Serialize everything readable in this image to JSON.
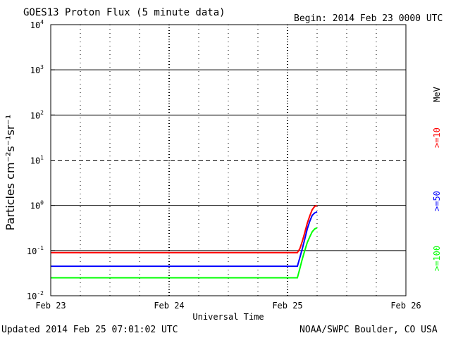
{
  "header": {
    "title": "GOES13 Proton Flux (5 minute data)",
    "begin": "Begin: 2014 Feb 23 0000 UTC"
  },
  "footer": {
    "updated": "Updated 2014 Feb 25 07:01:02 UTC",
    "credit": "NOAA/SWPC Boulder, CO USA"
  },
  "chart_data": {
    "type": "line",
    "title": "GOES13 Proton Flux (5 minute data)",
    "xlabel": "Universal Time",
    "ylabel": "Particles cm⁻²s⁻¹sr⁻¹",
    "yscale": "log",
    "ylim": [
      0.01,
      10000
    ],
    "xlim": [
      0,
      72
    ],
    "x_unit": "hours since 2014 Feb 23 00:00 UTC",
    "x_ticks": [
      {
        "x": 0,
        "label": "Feb 23"
      },
      {
        "x": 24,
        "label": "Feb 24"
      },
      {
        "x": 48,
        "label": "Feb 25"
      },
      {
        "x": 72,
        "label": "Feb 26"
      }
    ],
    "y_ticks": [
      {
        "value": 0.01,
        "base": "10",
        "exp": "-2"
      },
      {
        "value": 0.1,
        "base": "10",
        "exp": "-1"
      },
      {
        "value": 1,
        "base": "10",
        "exp": "0"
      },
      {
        "value": 10,
        "base": "10",
        "exp": "1"
      },
      {
        "value": 100,
        "base": "10",
        "exp": "2"
      },
      {
        "value": 1000,
        "base": "10",
        "exp": "3"
      },
      {
        "value": 10000,
        "base": "10",
        "exp": "4"
      }
    ],
    "reference_lines": [
      {
        "value": 0.1,
        "style": "solid"
      },
      {
        "value": 1,
        "style": "solid"
      },
      {
        "value": 10,
        "style": "dashed"
      },
      {
        "value": 100,
        "style": "solid"
      },
      {
        "value": 1000,
        "style": "solid"
      }
    ],
    "grid": "dotted verticals at 6 h intervals",
    "series": [
      {
        "name": ">=10 MeV",
        "color": "#ff0000",
        "x": [
          0,
          3,
          6,
          9,
          12,
          15,
          18,
          21,
          24,
          27,
          30,
          33,
          36,
          39,
          42,
          45,
          48,
          50,
          50.5,
          51,
          51.5,
          52,
          52.5,
          53,
          53.5,
          54
        ],
        "y": [
          0.09,
          0.09,
          0.09,
          0.09,
          0.09,
          0.09,
          0.09,
          0.09,
          0.09,
          0.09,
          0.09,
          0.09,
          0.09,
          0.09,
          0.09,
          0.09,
          0.09,
          0.09,
          0.11,
          0.16,
          0.25,
          0.4,
          0.58,
          0.8,
          0.95,
          1.0
        ]
      },
      {
        "name": ">=50 MeV",
        "color": "#0000ff",
        "x": [
          0,
          3,
          6,
          9,
          12,
          15,
          18,
          21,
          24,
          27,
          30,
          33,
          36,
          39,
          42,
          45,
          48,
          50,
          50.5,
          51,
          51.5,
          52,
          52.5,
          53,
          53.5,
          54
        ],
        "y": [
          0.045,
          0.045,
          0.045,
          0.045,
          0.045,
          0.045,
          0.045,
          0.045,
          0.045,
          0.045,
          0.045,
          0.045,
          0.045,
          0.045,
          0.045,
          0.045,
          0.045,
          0.045,
          0.07,
          0.11,
          0.18,
          0.3,
          0.44,
          0.6,
          0.68,
          0.72
        ]
      },
      {
        "name": ">=100 MeV",
        "color": "#00ff00",
        "x": [
          0,
          3,
          6,
          9,
          12,
          15,
          18,
          21,
          24,
          27,
          30,
          33,
          36,
          39,
          42,
          45,
          48,
          50,
          50.5,
          51,
          51.5,
          52,
          52.5,
          53,
          53.5,
          54
        ],
        "y": [
          0.025,
          0.025,
          0.025,
          0.025,
          0.025,
          0.025,
          0.025,
          0.025,
          0.025,
          0.025,
          0.025,
          0.025,
          0.025,
          0.025,
          0.025,
          0.025,
          0.025,
          0.025,
          0.04,
          0.065,
          0.1,
          0.15,
          0.2,
          0.26,
          0.3,
          0.32
        ]
      }
    ],
    "legend": {
      "placement": "right, rotated vertically",
      "unit": "MeV",
      "entries": [
        {
          "label": ">=10",
          "color": "#ff0000"
        },
        {
          "label": ">=50",
          "color": "#0000ff"
        },
        {
          "label": ">=100",
          "color": "#00ff00"
        }
      ]
    }
  }
}
